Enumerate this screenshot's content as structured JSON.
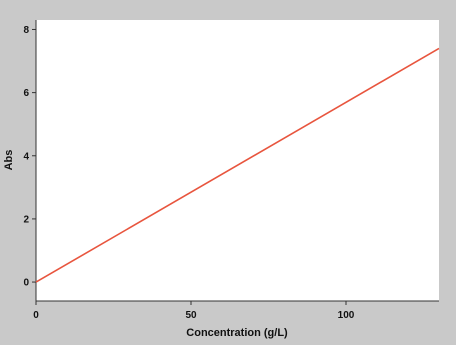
{
  "chart_data": {
    "type": "line",
    "title": "",
    "xlabel": "Concentration (g/L)",
    "ylabel": "Abs",
    "xlim": [
      0,
      130
    ],
    "ylim": [
      -0.6,
      8.3
    ],
    "x_ticks": [
      0,
      50,
      100
    ],
    "y_ticks": [
      0,
      2,
      4,
      6,
      8
    ],
    "grid": false,
    "series": [
      {
        "color": "#e8553e",
        "points": [
          [
            0,
            0.0
          ],
          [
            130,
            7.4
          ]
        ]
      }
    ]
  }
}
